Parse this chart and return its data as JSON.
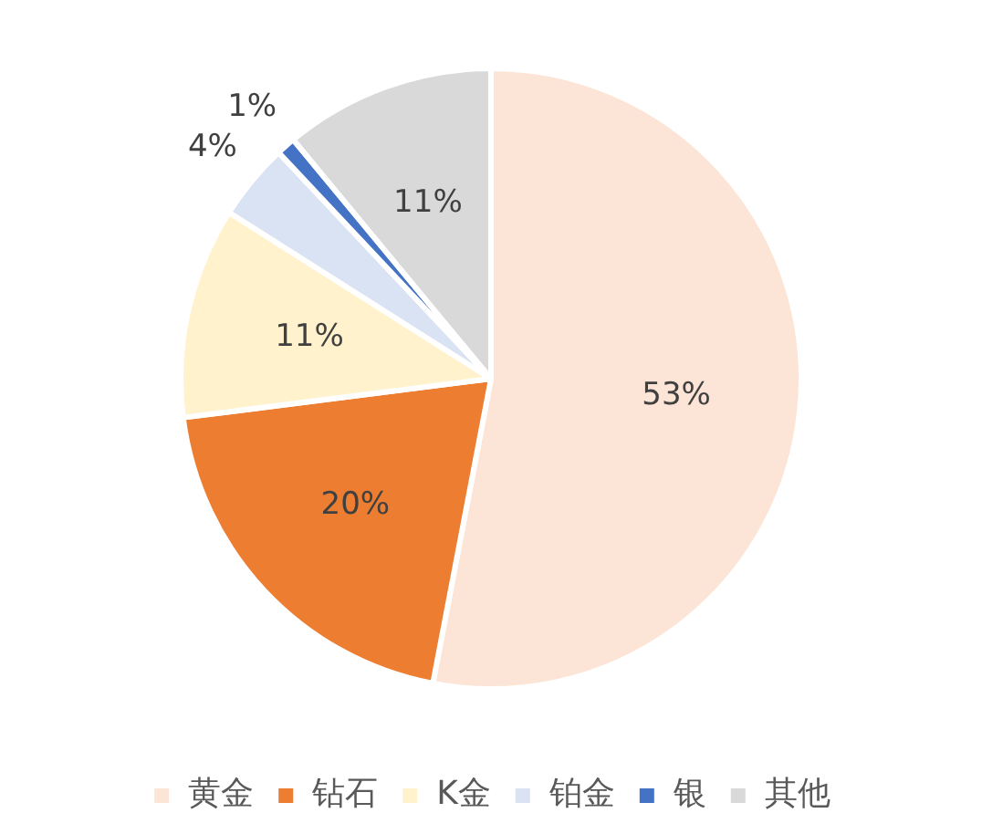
{
  "chart_data": {
    "type": "pie",
    "categories": [
      "黄金",
      "钻石",
      "K金",
      "铂金",
      "银",
      "其他"
    ],
    "values": [
      53,
      20,
      11,
      4,
      1,
      11
    ],
    "value_labels": [
      "53%",
      "20%",
      "11%",
      "4%",
      "1%",
      "11%"
    ],
    "colors": [
      "#fce4d6",
      "#ed7d31",
      "#fff2cc",
      "#dae3f3",
      "#4472c4",
      "#d9d9d9"
    ],
    "legend": "bottom"
  }
}
